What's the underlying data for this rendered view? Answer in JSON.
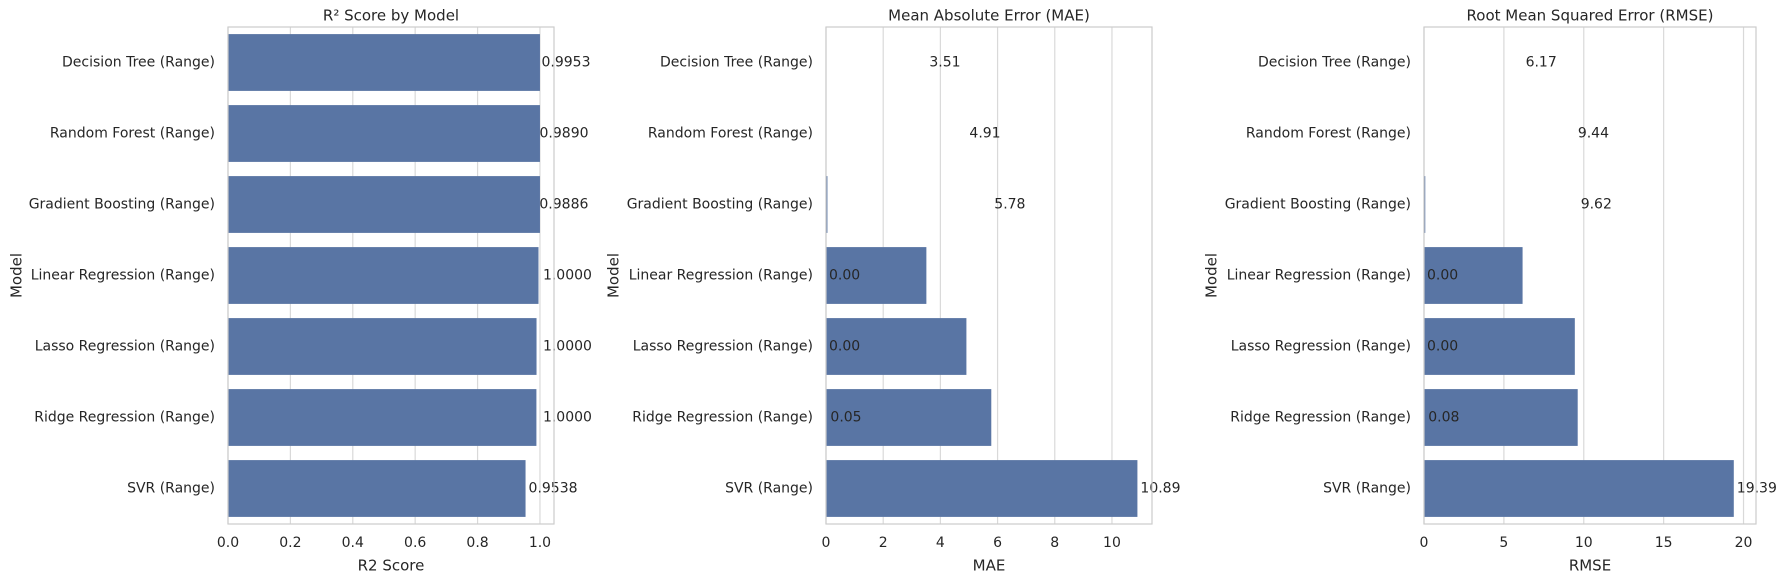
{
  "chart_data": [
    {
      "type": "barh",
      "title": "R² Score by Model",
      "xlabel": "R2 Score",
      "ylabel": "Model",
      "categories": [
        "Decision Tree (Range)",
        "Random Forest (Range)",
        "Gradient Boosting (Range)",
        "Linear Regression (Range)",
        "Lasso Regression (Range)",
        "Ridge Regression (Range)",
        "SVR (Range)"
      ],
      "values": [
        1.0,
        1.0,
        1.0,
        0.9953,
        0.989,
        0.9886,
        0.9538
      ],
      "annotations": [
        {
          "value": 0.9953,
          "label": "0.9953"
        },
        {
          "value": 0.989,
          "label": "0.9890"
        },
        {
          "value": 0.9886,
          "label": "0.9886"
        },
        {
          "value": 1.0,
          "label": "1.0000"
        },
        {
          "value": 1.0,
          "label": "1.0000"
        },
        {
          "value": 1.0,
          "label": "1.0000"
        },
        {
          "value": 0.9538,
          "label": "0.9538"
        }
      ],
      "color": "#5975a4",
      "xlim": [
        0,
        1.045
      ],
      "xticks": [
        {
          "value": 0,
          "label": "0.0"
        },
        0.2,
        0.4,
        0.6,
        0.8,
        {
          "value": 1,
          "label": "1.0"
        }
      ],
      "grid": true
    },
    {
      "type": "barh",
      "title": "Mean Absolute Error (MAE)",
      "xlabel": "MAE",
      "ylabel": "Model",
      "categories": [
        "Decision Tree (Range)",
        "Random Forest (Range)",
        "Gradient Boosting (Range)",
        "Linear Regression (Range)",
        "Lasso Regression (Range)",
        "Ridge Regression (Range)",
        "SVR (Range)"
      ],
      "values": [
        0,
        0,
        0.05,
        3.51,
        4.91,
        5.78,
        10.89
      ],
      "annotations": [
        {
          "value": 3.51,
          "label": "3.51"
        },
        {
          "value": 4.91,
          "label": "4.91"
        },
        {
          "value": 5.78,
          "label": "5.78"
        },
        {
          "value": 0,
          "label": "0.00"
        },
        {
          "value": 0,
          "label": "0.00"
        },
        {
          "value": 0.05,
          "label": "0.05"
        },
        {
          "value": 10.89,
          "label": "10.89"
        }
      ],
      "color": "#5975a4",
      "xlim": [
        0,
        11.4
      ],
      "xticks": [
        0,
        2,
        4,
        6,
        8,
        10
      ],
      "grid": true
    },
    {
      "type": "barh",
      "title": "Root Mean Squared Error (RMSE)",
      "xlabel": "RMSE",
      "ylabel": "Model",
      "categories": [
        "Decision Tree (Range)",
        "Random Forest (Range)",
        "Gradient Boosting (Range)",
        "Linear Regression (Range)",
        "Lasso Regression (Range)",
        "Ridge Regression (Range)",
        "SVR (Range)"
      ],
      "values": [
        0,
        0,
        0.08,
        6.17,
        9.44,
        9.62,
        19.39
      ],
      "annotations": [
        {
          "value": 6.17,
          "label": "6.17"
        },
        {
          "value": 9.44,
          "label": "9.44"
        },
        {
          "value": 9.62,
          "label": "9.62"
        },
        {
          "value": 0,
          "label": "0.00"
        },
        {
          "value": 0,
          "label": "0.00"
        },
        {
          "value": 0.08,
          "label": "0.08"
        },
        {
          "value": 19.39,
          "label": "19.39"
        }
      ],
      "color": "#5975a4",
      "xlim": [
        0,
        20.78
      ],
      "xticks": [
        0,
        5,
        10,
        15,
        20
      ],
      "grid": true
    }
  ]
}
